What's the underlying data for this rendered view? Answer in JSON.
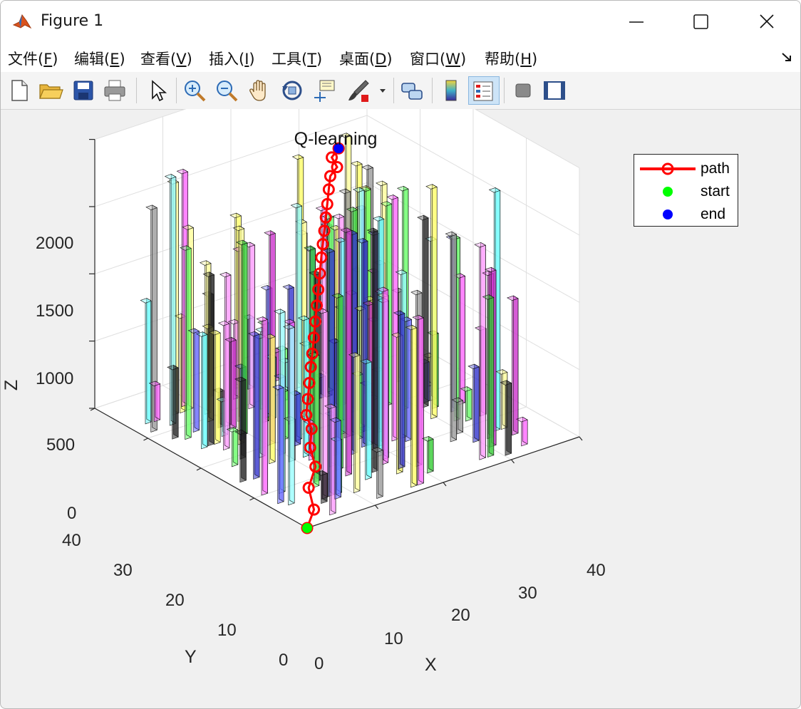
{
  "window": {
    "title": "Figure 1",
    "minimize_icon": "minimize-icon",
    "maximize_icon": "maximize-icon",
    "close_icon": "close-icon"
  },
  "menu": {
    "items": [
      {
        "text": "文件(",
        "acc": "F",
        "tail": ")"
      },
      {
        "text": "编辑(",
        "acc": "E",
        "tail": ")"
      },
      {
        "text": "查看(",
        "acc": "V",
        "tail": ")"
      },
      {
        "text": "插入(",
        "acc": "I",
        "tail": ")"
      },
      {
        "text": "工具(",
        "acc": "T",
        "tail": ")"
      },
      {
        "text": "桌面(",
        "acc": "D",
        "tail": ")"
      },
      {
        "text": "窗口(",
        "acc": "W",
        "tail": ")"
      },
      {
        "text": "帮助(",
        "acc": "H",
        "tail": ")"
      }
    ],
    "dock_icon": "dock-arrow-icon"
  },
  "toolbar": {
    "icons": [
      "new-file-icon",
      "open-folder-icon",
      "save-icon",
      "print-icon",
      "pointer-icon",
      "zoom-in-icon",
      "zoom-out-icon",
      "pan-hand-icon",
      "rotate-3d-icon",
      "data-cursor-icon",
      "brush-icon",
      "brush-dropdown-icon",
      "link-plot-icon",
      "colorbar-icon",
      "legend-icon",
      "hide-plot-tools-icon",
      "show-plot-tools-icon"
    ],
    "legend_toggle_active": true
  },
  "plot": {
    "title": "Q-learning",
    "xlabel": "X",
    "ylabel": "Y",
    "zlabel": "Z",
    "legend": [
      {
        "label": "path",
        "color": "#ff0000",
        "marker": "circle-open-line"
      },
      {
        "label": "start",
        "color": "#00ff00",
        "marker": "dot"
      },
      {
        "label": "end",
        "color": "#0000ff",
        "marker": "dot"
      }
    ]
  },
  "chart_data": {
    "type": "3d-bar-obstacles-with-path",
    "title": "Q-learning",
    "xlabel": "X",
    "ylabel": "Y",
    "zlabel": "Z",
    "xlim": [
      0,
      40
    ],
    "ylim": [
      0,
      40
    ],
    "zlim": [
      0,
      2000
    ],
    "x_ticks": [
      0,
      10,
      20,
      30,
      40
    ],
    "y_ticks": [
      0,
      10,
      20,
      30,
      40
    ],
    "z_ticks": [
      0,
      500,
      1000,
      1500,
      2000
    ],
    "grid": true,
    "legend_position": "top-right",
    "series": [
      {
        "name": "path",
        "color": "#ff0000",
        "marker": "o",
        "points": [
          [
            0,
            0,
            0
          ],
          [
            1,
            0,
            120
          ],
          [
            1,
            1,
            260
          ],
          [
            2,
            1,
            400
          ],
          [
            2,
            2,
            520
          ],
          [
            3,
            3,
            620
          ],
          [
            3,
            4,
            700
          ],
          [
            4,
            5,
            780
          ],
          [
            5,
            6,
            860
          ],
          [
            6,
            7,
            940
          ],
          [
            7,
            8,
            1000
          ],
          [
            8,
            9,
            1080
          ],
          [
            9,
            10,
            1160
          ],
          [
            10,
            11,
            1240
          ],
          [
            11,
            12,
            1320
          ],
          [
            12,
            13,
            1400
          ],
          [
            13,
            14,
            1480
          ],
          [
            14,
            15,
            1540
          ],
          [
            15,
            16,
            1600
          ],
          [
            16,
            17,
            1660
          ],
          [
            17,
            18,
            1720
          ],
          [
            18,
            19,
            1790
          ],
          [
            19,
            20,
            1850
          ],
          [
            20,
            20,
            1900
          ],
          [
            20,
            21,
            1950
          ],
          [
            21,
            21,
            2000
          ]
        ]
      },
      {
        "name": "start",
        "color": "#00ff00",
        "points": [
          [
            0,
            0,
            0
          ]
        ]
      },
      {
        "name": "end",
        "color": "#0000ff",
        "points": [
          [
            21,
            21,
            2000
          ]
        ]
      }
    ]
  }
}
